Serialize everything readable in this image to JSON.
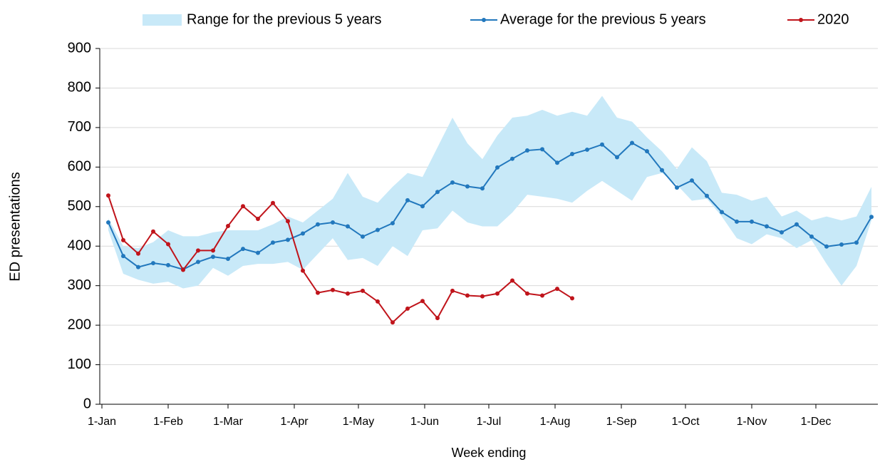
{
  "chart_data": {
    "type": "line",
    "x_label": "Week ending",
    "y_label": "ED presentations",
    "x": [
      3,
      10,
      17,
      24,
      31,
      38,
      45,
      52,
      59,
      66,
      73,
      80,
      87,
      94,
      101,
      108,
      115,
      122,
      129,
      136,
      143,
      150,
      157,
      164,
      171,
      178,
      185,
      192,
      199,
      206,
      213,
      220,
      227,
      234,
      241,
      248,
      255,
      262,
      269,
      276,
      283,
      290,
      297,
      304,
      311,
      318,
      325,
      332,
      339,
      346,
      353,
      360
    ],
    "xlim": [
      -1,
      363
    ],
    "xticks": [
      {
        "value": 0,
        "label": "1-Jan"
      },
      {
        "value": 31,
        "label": "1-Feb"
      },
      {
        "value": 59,
        "label": "1-Mar"
      },
      {
        "value": 90,
        "label": "1-Apr"
      },
      {
        "value": 120,
        "label": "1-May"
      },
      {
        "value": 151,
        "label": "1-Jun"
      },
      {
        "value": 181,
        "label": "1-Jul"
      },
      {
        "value": 212,
        "label": "1-Aug"
      },
      {
        "value": 243,
        "label": "1-Sep"
      },
      {
        "value": 273,
        "label": "1-Oct"
      },
      {
        "value": 304,
        "label": "1-Nov"
      },
      {
        "value": 334,
        "label": "1-Dec"
      }
    ],
    "ylim": [
      0,
      900
    ],
    "yticks": [
      0,
      100,
      200,
      300,
      400,
      500,
      600,
      700,
      800,
      900
    ],
    "grid": true,
    "legend": "top",
    "series": [
      {
        "name": "Range for the previous 5 years",
        "type": "band",
        "color": "#c8e9f8",
        "upper": [
          470,
          400,
          395,
          410,
          440,
          425,
          425,
          435,
          440,
          440,
          440,
          455,
          475,
          460,
          490,
          520,
          585,
          525,
          510,
          550,
          585,
          575,
          650,
          725,
          660,
          620,
          680,
          725,
          730,
          745,
          730,
          740,
          730,
          780,
          725,
          715,
          675,
          640,
          595,
          650,
          615,
          535,
          530,
          515,
          525,
          475,
          490,
          465,
          475,
          465,
          475,
          550
        ],
        "lower": [
          440,
          330,
          315,
          305,
          310,
          293,
          300,
          345,
          325,
          350,
          355,
          355,
          360,
          340,
          380,
          420,
          365,
          370,
          350,
          400,
          375,
          440,
          445,
          490,
          460,
          450,
          450,
          485,
          530,
          525,
          520,
          510,
          540,
          565,
          540,
          515,
          575,
          585,
          555,
          515,
          520,
          475,
          420,
          405,
          430,
          420,
          395,
          415,
          355,
          300,
          350,
          465
        ]
      },
      {
        "name": "Average for the previous 5 years",
        "type": "line",
        "color": "#2278bd",
        "values": [
          460,
          375,
          347,
          357,
          352,
          341,
          360,
          373,
          368,
          393,
          383,
          409,
          416,
          432,
          455,
          460,
          450,
          424,
          441,
          458,
          516,
          501,
          537,
          561,
          551,
          546,
          599,
          621,
          642,
          645,
          611,
          633,
          644,
          657,
          625,
          661,
          640,
          592,
          548,
          566,
          527,
          486,
          462,
          462,
          450,
          435,
          455,
          424,
          399,
          404,
          409,
          474
        ]
      },
      {
        "name": "2020",
        "type": "line",
        "color": "#c0141b",
        "values": [
          528,
          415,
          381,
          437,
          405,
          340,
          389,
          389,
          451,
          501,
          469,
          509,
          463,
          338,
          282,
          289,
          280,
          287,
          260,
          207,
          242,
          261,
          218,
          287,
          275,
          273,
          280,
          313,
          280,
          275,
          292,
          268,
          null,
          null,
          null,
          null,
          null,
          null,
          null,
          null,
          null,
          null,
          null,
          null,
          null,
          null,
          null,
          null,
          null,
          null,
          null,
          null
        ]
      }
    ]
  }
}
